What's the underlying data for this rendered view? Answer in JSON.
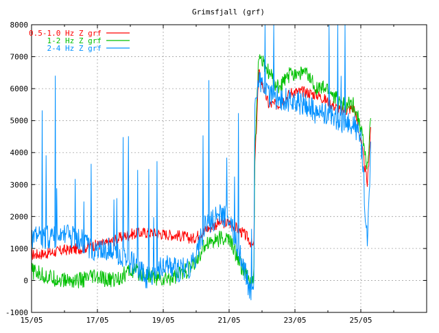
{
  "chart_data": {
    "type": "line",
    "title": "Grimsfjall (grf)",
    "xlabel": "",
    "ylabel": "",
    "x_ticks": [
      "15/05",
      "17/05",
      "19/05",
      "21/05",
      "23/05",
      "25/05"
    ],
    "x_tick_days": [
      15,
      17,
      19,
      21,
      23,
      25
    ],
    "xlim": [
      15,
      27
    ],
    "ylim": [
      -1000,
      8000
    ],
    "y_ticks": [
      -1000,
      0,
      1000,
      2000,
      3000,
      4000,
      5000,
      6000,
      7000,
      8000
    ],
    "grid": true,
    "legend_position": "top-left",
    "series": [
      {
        "name": "0.5-1.0 Hz Z grf",
        "color": "#ff0000",
        "x": [
          15.0,
          15.5,
          16.0,
          16.5,
          16.9,
          17.3,
          17.6,
          18.0,
          18.5,
          19.0,
          19.5,
          19.9,
          20.3,
          20.7,
          21.0,
          21.4,
          21.6,
          21.75,
          21.78,
          21.9,
          22.2,
          22.5,
          22.9,
          23.3,
          23.7,
          24.0,
          24.4,
          24.8,
          25.0,
          25.2,
          25.3
        ],
        "y": [
          800,
          850,
          950,
          1000,
          1100,
          1150,
          1300,
          1450,
          1500,
          1450,
          1400,
          1300,
          1600,
          1800,
          1800,
          1500,
          1300,
          1000,
          3600,
          6500,
          5500,
          5500,
          5900,
          5900,
          5800,
          5600,
          5300,
          5400,
          4400,
          3000,
          4800
        ]
      },
      {
        "name": "1-2 Hz Z grf",
        "color": "#00c000",
        "x": [
          15.0,
          15.5,
          16.0,
          16.5,
          16.9,
          17.3,
          17.6,
          18.0,
          18.5,
          19.0,
          19.5,
          19.9,
          20.3,
          20.7,
          21.0,
          21.4,
          21.6,
          21.75,
          21.78,
          21.9,
          22.2,
          22.5,
          22.9,
          23.3,
          23.7,
          24.0,
          24.4,
          24.8,
          25.0,
          25.2,
          25.3
        ],
        "y": [
          300,
          100,
          0,
          0,
          100,
          0,
          50,
          300,
          200,
          0,
          200,
          400,
          1200,
          1300,
          1300,
          400,
          0,
          -100,
          4000,
          7000,
          6500,
          6000,
          6500,
          6500,
          6000,
          6000,
          5500,
          5500,
          4800,
          3500,
          5000
        ]
      },
      {
        "name": "2-4 Hz Z grf",
        "color": "#0090ff",
        "x": [
          15.0,
          15.5,
          16.0,
          16.5,
          16.9,
          17.3,
          17.6,
          18.0,
          18.5,
          19.0,
          19.5,
          19.9,
          20.3,
          20.7,
          21.0,
          21.4,
          21.6,
          21.75,
          21.78,
          21.9,
          22.2,
          22.5,
          22.9,
          23.3,
          23.7,
          24.0,
          24.4,
          24.8,
          25.0,
          25.2,
          25.3
        ],
        "y": [
          1300,
          1350,
          1400,
          1300,
          900,
          1000,
          800,
          600,
          100,
          500,
          300,
          500,
          1800,
          2000,
          2000,
          600,
          -200,
          -400,
          5500,
          6200,
          5800,
          5700,
          5600,
          5500,
          5200,
          5200,
          5000,
          4800,
          4500,
          1200,
          4200
        ]
      }
    ]
  }
}
